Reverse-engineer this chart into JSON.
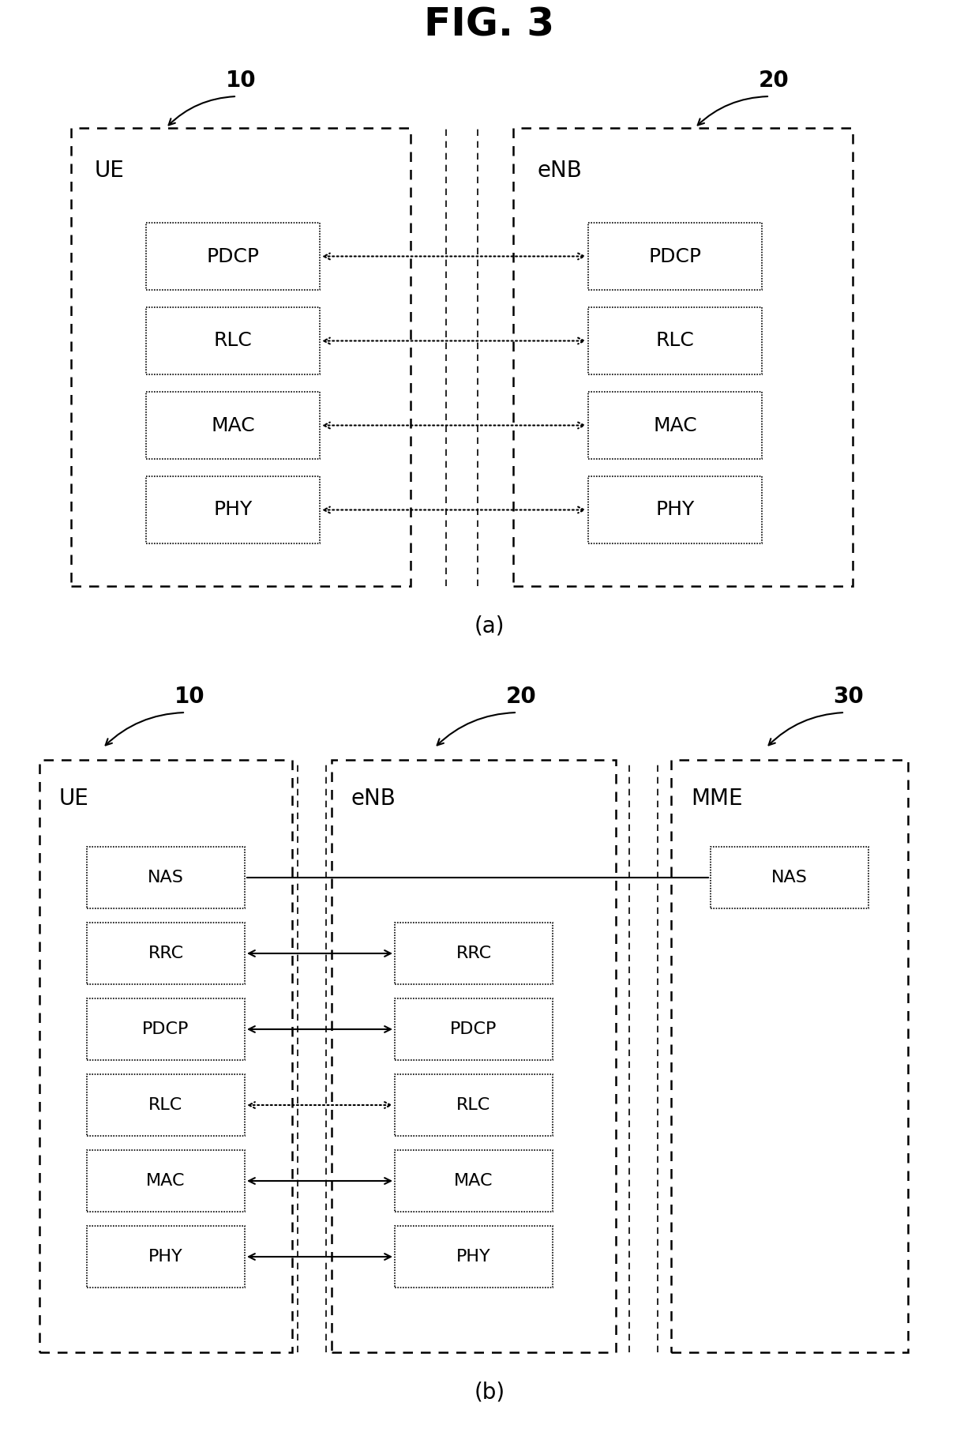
{
  "title": "FIG. 3",
  "title_fontsize": 36,
  "bg_color": "#ffffff",
  "fig_label_a": "(a)",
  "fig_label_b": "(b)",
  "diagram_a": {
    "ue_label": "UE",
    "enb_label": "eNB",
    "ref_10": "10",
    "ref_20": "20",
    "layers": [
      "PDCP",
      "RLC",
      "MAC",
      "PHY"
    ]
  },
  "diagram_b": {
    "ue_label": "UE",
    "enb_label": "eNB",
    "mme_label": "MME",
    "ref_10": "10",
    "ref_20": "20",
    "ref_30": "30",
    "ue_layers": [
      "NAS",
      "RRC",
      "PDCP",
      "RLC",
      "MAC",
      "PHY"
    ],
    "enb_layers": [
      "RRC",
      "PDCP",
      "RLC",
      "MAC",
      "PHY"
    ],
    "mme_layers": [
      "NAS"
    ]
  }
}
